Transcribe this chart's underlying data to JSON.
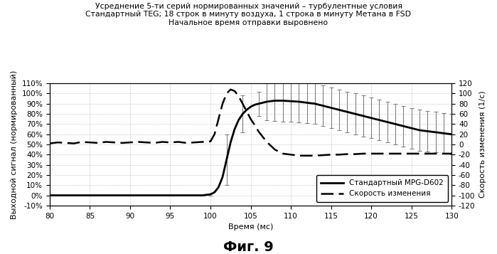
{
  "title_line1": "Усреднение 5-ти серий нормированных значений – турбулентные условия",
  "title_line2": "Стандартный TEG; 18 строк в минуту воздуха, 1 строка в минуту Метана в FSD",
  "title_line3": "Начальное время отправки выровнено",
  "xlabel": "Время (мс)",
  "ylabel_left": "Выходной сигнал (нормированный)",
  "ylabel_right": "Скорость изменения (1/с)",
  "legend_solid": "Стандартный MPG-D602",
  "legend_dashed": "Скорость изменения",
  "fig_label": "Фиг. 9",
  "xlim": [
    80,
    130
  ],
  "ylim_left": [
    -0.1,
    1.1
  ],
  "ylim_right": [
    -120,
    120
  ],
  "xticks": [
    80,
    85,
    90,
    95,
    100,
    105,
    110,
    115,
    120,
    125,
    130
  ],
  "yticks_left_vals": [
    -0.1,
    0.0,
    0.1,
    0.2,
    0.3,
    0.4,
    0.5,
    0.6,
    0.7,
    0.8,
    0.9,
    1.0,
    1.1
  ],
  "yticks_left_labels": [
    "-10%",
    "0%",
    "10%",
    "20%",
    "30%",
    "40%",
    "50%",
    "60%",
    "70%",
    "80%",
    "90%",
    "100%",
    "110%"
  ],
  "yticks_right": [
    -120,
    -100,
    -80,
    -60,
    -40,
    -20,
    0,
    20,
    40,
    60,
    80,
    100,
    120
  ],
  "solid_x": [
    80,
    81,
    82,
    83,
    84,
    85,
    86,
    87,
    88,
    89,
    90,
    91,
    92,
    93,
    94,
    95,
    96,
    97,
    98,
    99,
    100,
    100.5,
    101,
    101.5,
    102,
    102.5,
    103,
    103.5,
    104,
    104.5,
    105,
    105.5,
    106,
    106.5,
    107,
    107.5,
    108,
    109,
    110,
    111,
    112,
    113,
    114,
    115,
    116,
    117,
    118,
    119,
    120,
    121,
    122,
    123,
    124,
    125,
    126,
    127,
    128,
    129,
    130
  ],
  "solid_y": [
    0.0,
    0.0,
    0.0,
    0.0,
    0.0,
    0.0,
    0.0,
    0.0,
    0.0,
    0.0,
    0.0,
    0.0,
    0.0,
    0.0,
    0.0,
    0.0,
    0.0,
    0.0,
    0.0,
    0.0,
    0.01,
    0.03,
    0.08,
    0.18,
    0.35,
    0.52,
    0.65,
    0.74,
    0.8,
    0.84,
    0.87,
    0.89,
    0.9,
    0.91,
    0.92,
    0.925,
    0.93,
    0.93,
    0.925,
    0.92,
    0.91,
    0.9,
    0.88,
    0.86,
    0.84,
    0.82,
    0.8,
    0.78,
    0.76,
    0.74,
    0.72,
    0.7,
    0.68,
    0.66,
    0.64,
    0.63,
    0.62,
    0.61,
    0.6
  ],
  "solid_err_x": [
    80,
    81,
    82,
    83,
    84,
    85,
    86,
    87,
    88,
    89,
    90,
    91,
    92,
    93,
    94,
    95,
    96,
    97,
    98,
    99,
    100,
    102,
    104,
    106,
    107,
    108,
    109,
    110,
    111,
    112,
    113,
    114,
    115,
    116,
    117,
    118,
    119,
    120,
    121,
    122,
    123,
    124,
    125,
    126,
    127,
    128,
    129,
    130
  ],
  "solid_err_y": [
    0.0,
    0.0,
    0.0,
    0.0,
    0.0,
    0.0,
    0.0,
    0.0,
    0.0,
    0.0,
    0.0,
    0.0,
    0.0,
    0.0,
    0.0,
    0.0,
    0.0,
    0.0,
    0.0,
    0.0,
    0.01,
    0.35,
    0.8,
    0.9,
    0.92,
    0.93,
    0.925,
    0.925,
    0.92,
    0.91,
    0.9,
    0.88,
    0.86,
    0.84,
    0.82,
    0.8,
    0.78,
    0.76,
    0.74,
    0.72,
    0.7,
    0.68,
    0.66,
    0.64,
    0.63,
    0.62,
    0.61,
    0.6
  ],
  "solid_err_e": [
    0.005,
    0.005,
    0.005,
    0.005,
    0.005,
    0.005,
    0.005,
    0.005,
    0.005,
    0.005,
    0.005,
    0.005,
    0.005,
    0.005,
    0.005,
    0.005,
    0.005,
    0.005,
    0.005,
    0.005,
    0.01,
    0.25,
    0.18,
    0.12,
    0.18,
    0.2,
    0.2,
    0.2,
    0.2,
    0.2,
    0.2,
    0.2,
    0.2,
    0.2,
    0.2,
    0.2,
    0.2,
    0.2,
    0.2,
    0.2,
    0.2,
    0.2,
    0.2,
    0.2,
    0.2,
    0.2,
    0.2,
    0.2
  ],
  "dashed_x": [
    80,
    81,
    82,
    83,
    84,
    85,
    86,
    87,
    88,
    89,
    90,
    91,
    92,
    93,
    94,
    95,
    96,
    97,
    98,
    99,
    100,
    100.5,
    101,
    101.5,
    102,
    102.5,
    103,
    103.5,
    104,
    104.5,
    105,
    105.5,
    106,
    107,
    108,
    109,
    110,
    111,
    112,
    113,
    114,
    115,
    116,
    117,
    118,
    119,
    120,
    121,
    122,
    123,
    124,
    125,
    126,
    127,
    128,
    129,
    130
  ],
  "dashed_y": [
    2,
    4,
    3,
    2,
    5,
    4,
    3,
    5,
    4,
    3,
    4,
    5,
    4,
    3,
    5,
    4,
    5,
    3,
    4,
    5,
    6,
    20,
    50,
    80,
    100,
    108,
    105,
    95,
    80,
    65,
    50,
    38,
    25,
    5,
    -10,
    -18,
    -20,
    -22,
    -22,
    -22,
    -21,
    -20,
    -20,
    -19,
    -19,
    -18,
    -18,
    -18,
    -18,
    -18,
    -18,
    -18,
    -18,
    -18,
    -18,
    -18,
    -18
  ]
}
